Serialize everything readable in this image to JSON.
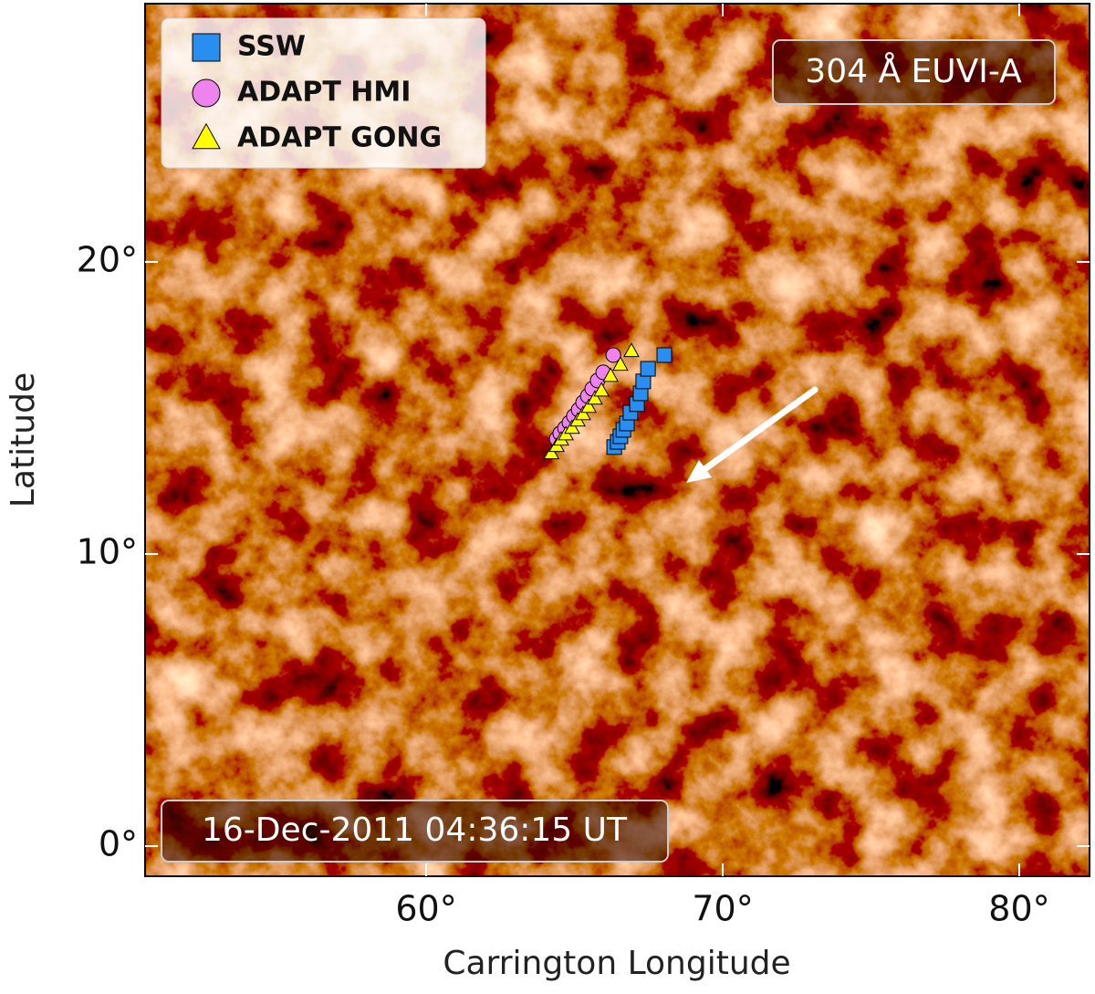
{
  "chart_data": {
    "type": "scatter",
    "xlabel": "Carrington Longitude",
    "ylabel": "Latitude",
    "xlim": [
      50.52,
      82.37
    ],
    "ylim": [
      -1.03,
      28.84
    ],
    "xticks": [
      {
        "value": 60,
        "label": "60°"
      },
      {
        "value": 70,
        "label": "70°"
      },
      {
        "value": 80,
        "label": "80°"
      }
    ],
    "yticks": [
      {
        "value": 0,
        "label": "0°"
      },
      {
        "value": 10,
        "label": "10°"
      },
      {
        "value": 20,
        "label": "20°"
      }
    ],
    "legend": "upper left",
    "annotations": [
      "304 Å EUVI-A",
      "16-Dec-2011 04:36:15 UT"
    ],
    "series": [
      {
        "name": "SSW",
        "color": "#2a8ef0",
        "marker": "square",
        "x": [
          66.34,
          66.46,
          66.55,
          66.65,
          66.77,
          66.89,
          67.11,
          67.23,
          67.32,
          67.48,
          68.03
        ],
        "values": [
          13.66,
          13.84,
          14.03,
          14.25,
          14.47,
          14.84,
          15.13,
          15.5,
          15.91,
          16.34,
          16.81
        ]
      },
      {
        "name": "ADAPT HMI",
        "color": "#ee82ee",
        "marker": "circle",
        "x": [
          64.4,
          64.52,
          64.68,
          64.83,
          64.98,
          65.14,
          65.29,
          65.45,
          65.6,
          65.78,
          65.97,
          66.31
        ],
        "values": [
          13.94,
          14.13,
          14.31,
          14.5,
          14.72,
          14.94,
          15.19,
          15.41,
          15.66,
          15.94,
          16.22,
          16.81
        ]
      },
      {
        "name": "ADAPT GONG",
        "color": "#ffff00",
        "marker": "triangle",
        "x": [
          64.22,
          64.4,
          64.55,
          64.71,
          64.92,
          65.11,
          65.29,
          65.48,
          65.69,
          65.91,
          66.22,
          66.55,
          66.92
        ],
        "values": [
          13.44,
          13.69,
          13.91,
          14.09,
          14.31,
          14.56,
          14.78,
          15.03,
          15.31,
          15.59,
          16.09,
          16.47,
          16.94
        ]
      }
    ]
  }
}
